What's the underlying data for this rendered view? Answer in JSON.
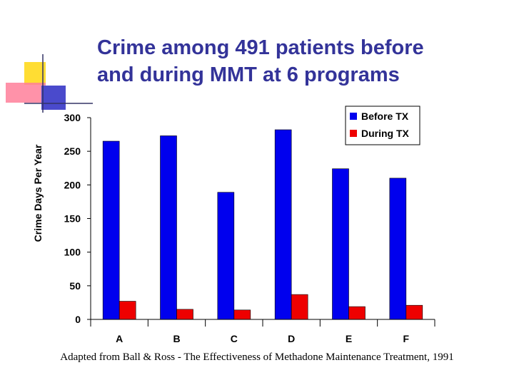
{
  "slide": {
    "title_line1": "Crime among 491 patients before",
    "title_line2": "and during MMT at 6 programs",
    "caption": "Adapted from Ball & Ross - The Effectiveness of Methadone Maintenance Treatment, 1991"
  },
  "colors": {
    "title": "#333399",
    "before": "#0000ee",
    "during": "#ee0000"
  },
  "chart_data": {
    "type": "bar",
    "categories": [
      "A",
      "B",
      "C",
      "D",
      "E",
      "F"
    ],
    "series": [
      {
        "name": "Before TX",
        "values": [
          265,
          273,
          189,
          282,
          224,
          210
        ]
      },
      {
        "name": "During TX",
        "values": [
          27,
          15,
          14,
          37,
          19,
          21
        ]
      }
    ],
    "ylabel": "Crime Days Per Year",
    "xlabel": "",
    "ylim": [
      0,
      300
    ],
    "yticks": [
      0,
      50,
      100,
      150,
      200,
      250,
      300
    ],
    "legend_position": "top-right",
    "grid": false
  }
}
